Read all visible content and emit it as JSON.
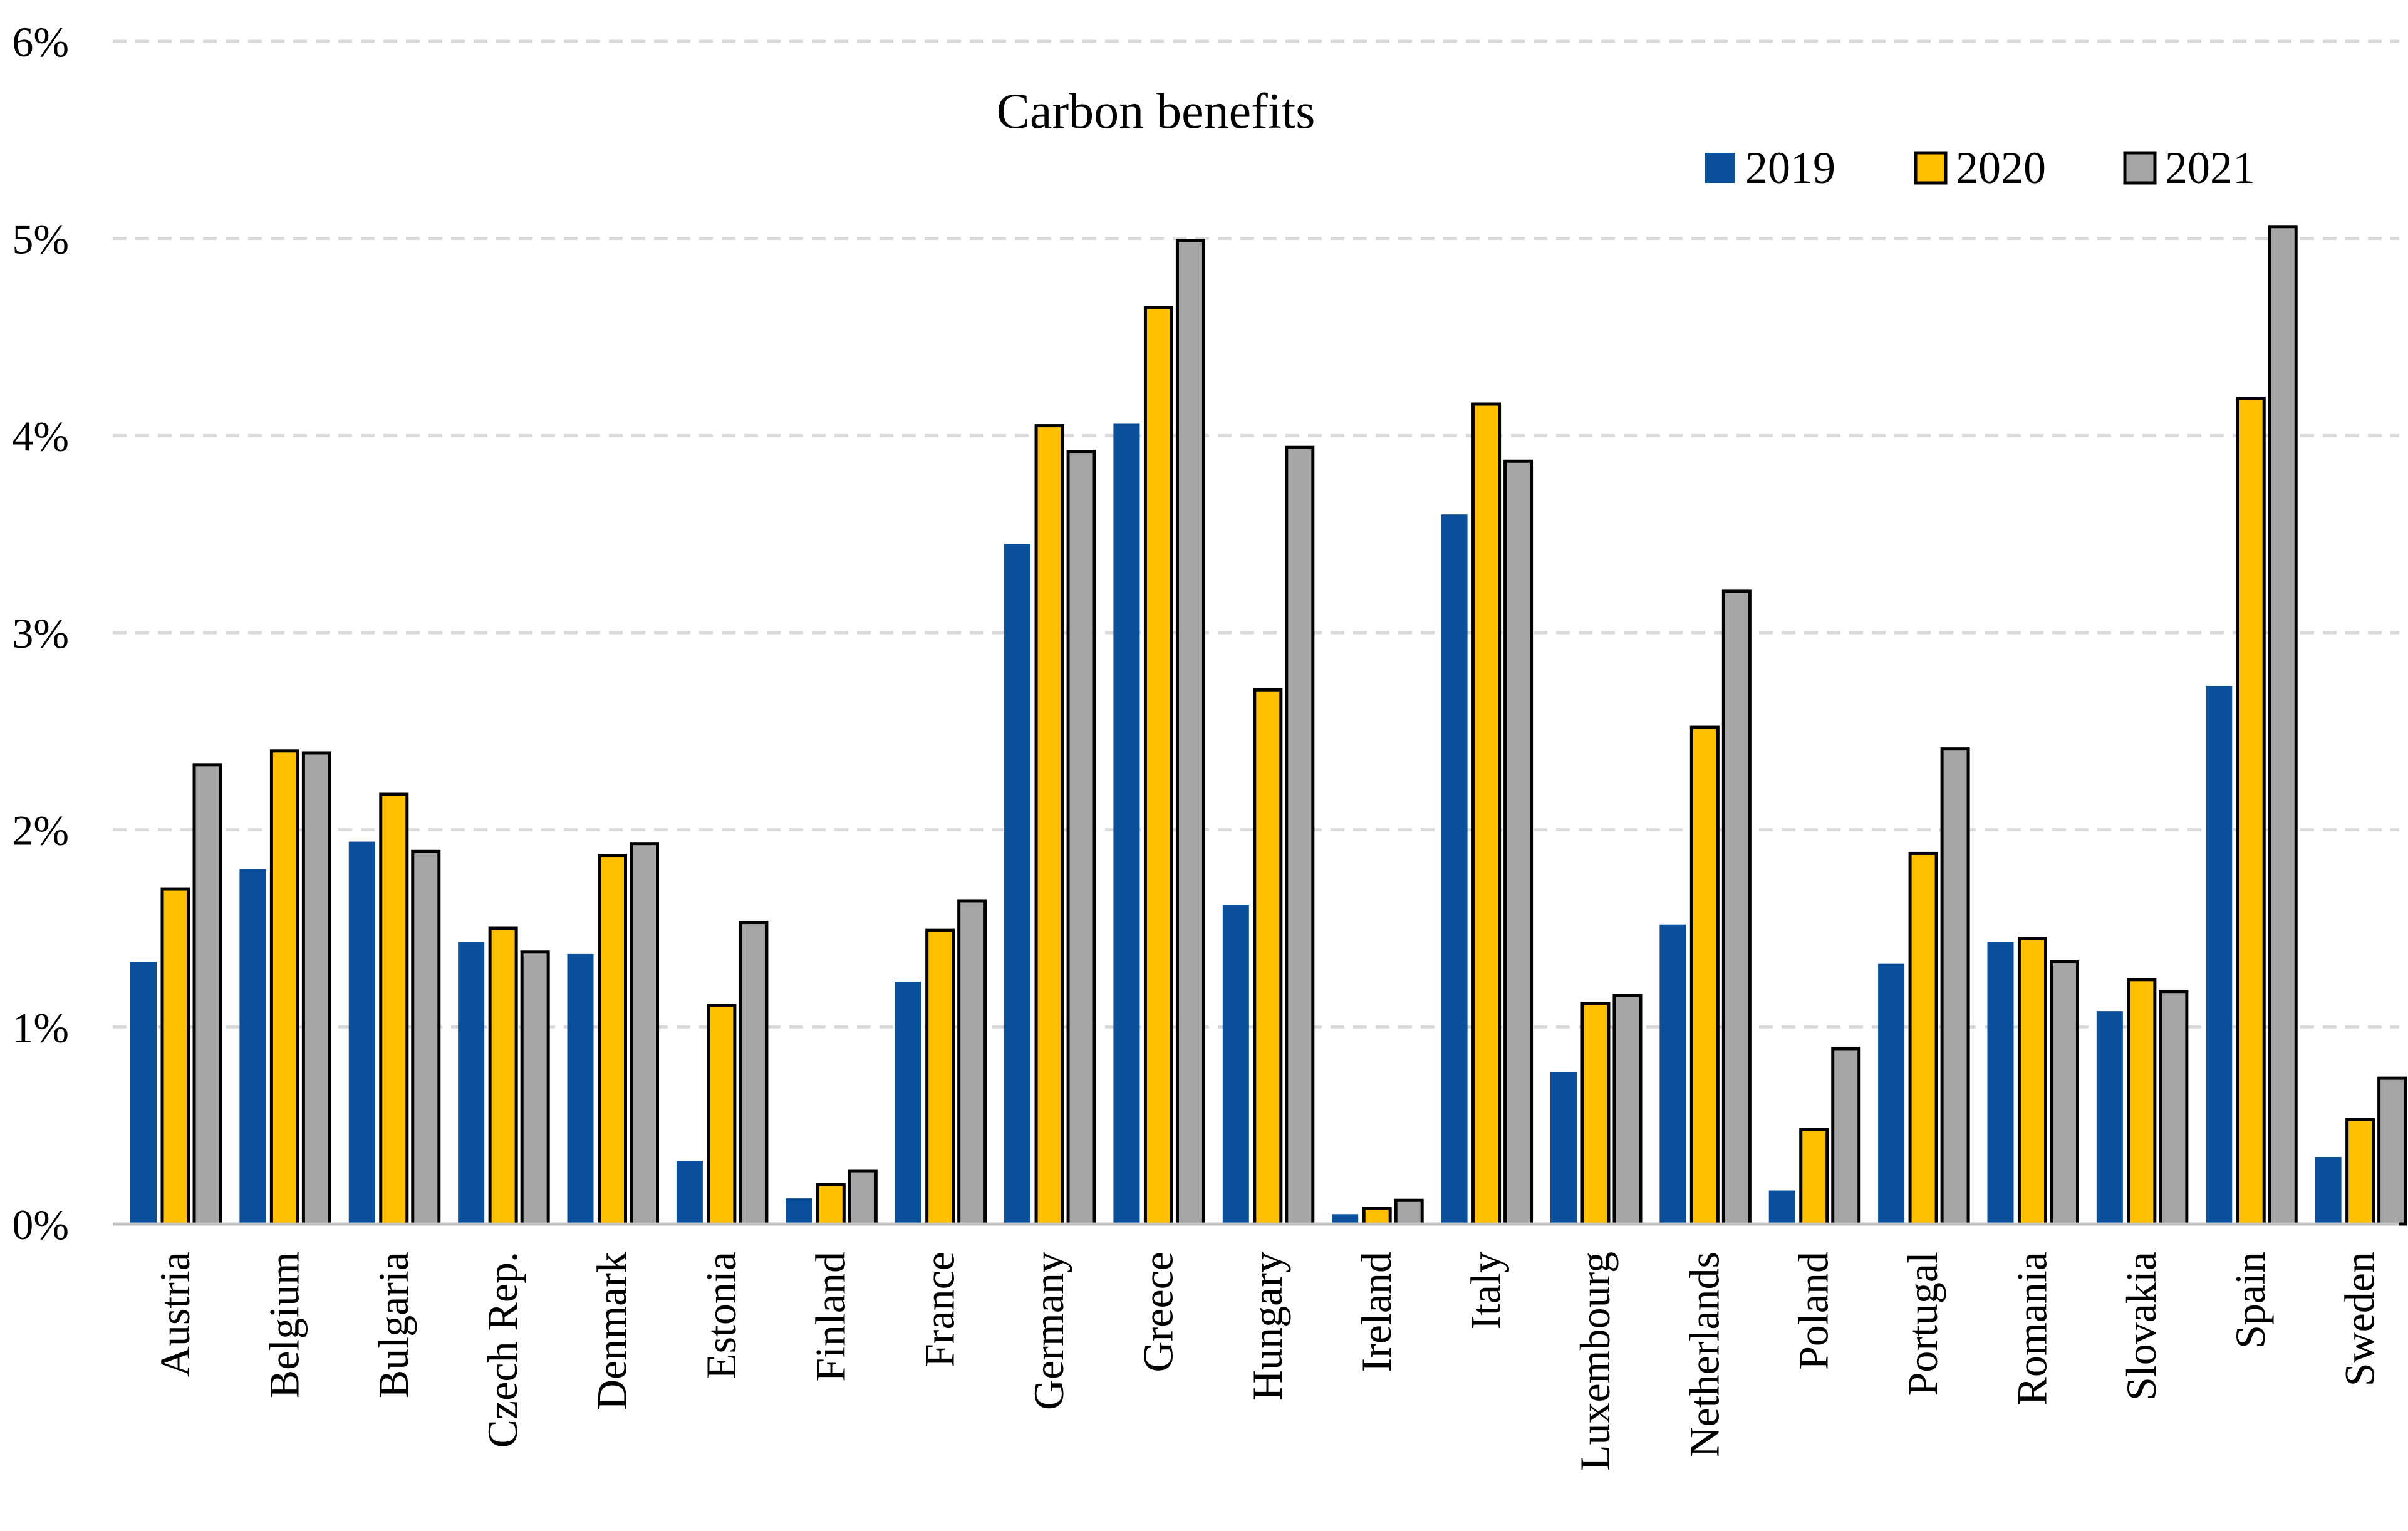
{
  "chart_data": {
    "type": "bar",
    "title": "Carbon benefits",
    "xlabel": "",
    "ylabel": "",
    "ylim": [
      0,
      6
    ],
    "yticks": [
      "0%",
      "1%",
      "2%",
      "3%",
      "4%",
      "5%",
      "6%"
    ],
    "grid": true,
    "legend_position": "top-right",
    "categories": [
      "Austria",
      "Belgium",
      "Bulgaria",
      "Czech Rep.",
      "Denmark",
      "Estonia",
      "Finland",
      "France",
      "Germany",
      "Greece",
      "Hungary",
      "Ireland",
      "Italy",
      "Luxembourg",
      "Netherlands",
      "Poland",
      "Portugal",
      "Romania",
      "Slovakia",
      "Spain",
      "Sweden"
    ],
    "series": [
      {
        "name": "2019",
        "color": "#0a4f9c",
        "outlined": false,
        "values": [
          1.33,
          1.8,
          1.94,
          1.43,
          1.37,
          0.32,
          0.13,
          1.23,
          3.45,
          4.06,
          1.62,
          0.05,
          3.6,
          0.77,
          1.52,
          0.17,
          1.32,
          1.43,
          1.08,
          2.73,
          0.34
        ]
      },
      {
        "name": "2020",
        "color": "#ffc000",
        "outlined": true,
        "values": [
          1.7,
          2.4,
          2.18,
          1.5,
          1.87,
          1.11,
          0.2,
          1.49,
          4.05,
          4.65,
          2.71,
          0.08,
          4.16,
          1.12,
          2.52,
          0.48,
          1.88,
          1.45,
          1.24,
          4.19,
          0.53
        ]
      },
      {
        "name": "2021",
        "color": "#a6a6a6",
        "outlined": true,
        "values": [
          2.33,
          2.39,
          1.89,
          1.38,
          1.93,
          1.53,
          0.27,
          1.64,
          3.92,
          4.99,
          3.94,
          0.12,
          3.87,
          1.16,
          3.21,
          0.89,
          2.41,
          1.33,
          1.18,
          5.06,
          0.74
        ]
      }
    ]
  }
}
